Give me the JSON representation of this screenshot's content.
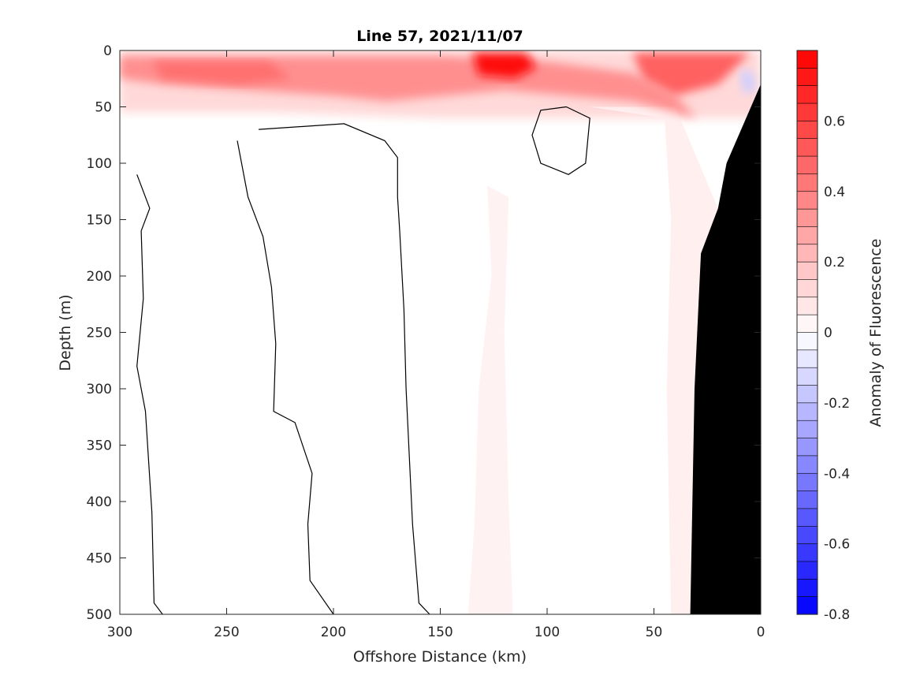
{
  "chart_data": {
    "type": "heatmap",
    "title": "Line 57, 2021/11/07",
    "xlabel": "Offshore Distance (km)",
    "ylabel": "Depth (m)",
    "colorbar_label": "Anomaly of Fluorescence",
    "xlim": [
      300,
      0
    ],
    "ylim": [
      500,
      0
    ],
    "x_reversed": true,
    "y_reversed": true,
    "x_ticks": [
      300,
      250,
      200,
      150,
      100,
      50,
      0
    ],
    "x_tick_labels": [
      "300",
      "250",
      "200",
      "150",
      "100",
      "50",
      "0"
    ],
    "y_ticks": [
      0,
      50,
      100,
      150,
      200,
      250,
      300,
      350,
      400,
      450,
      500
    ],
    "y_tick_labels": [
      "0",
      "50",
      "100",
      "150",
      "200",
      "250",
      "300",
      "350",
      "400",
      "450",
      "500"
    ],
    "colorbar": {
      "range": [
        -0.8,
        0.8
      ],
      "levels": 32,
      "ticks": [
        0.6,
        0.4,
        0.2,
        0,
        -0.2,
        -0.4,
        -0.6,
        -0.8
      ],
      "tick_labels": [
        "0.6",
        "0.4",
        "0.2",
        "0",
        "-0.2",
        "-0.4",
        "-0.6",
        "-0.8"
      ],
      "colormap": "blue-white-red"
    },
    "colors": {
      "negative": "#0000ff",
      "neutral": "#ffffff",
      "positive": "#ff0000",
      "bottom_mask": "#000000",
      "contour": "#000000"
    },
    "features": [
      {
        "region": "surface layer 0-60 m",
        "anomaly": 0.5
      },
      {
        "region": "near 125 km, 0-30 m",
        "anomaly": 0.75
      },
      {
        "region": "slope band 0-50 km, 0-500 m",
        "anomaly": 0.1
      },
      {
        "region": "band near 130 km, 130-500 m",
        "anomaly": 0.05
      },
      {
        "region": "nearshore patch 0-10 km, 20-40 m",
        "anomaly": -0.15
      }
    ],
    "zero_contours": [
      [
        [
          292,
          110
        ],
        [
          286,
          140
        ],
        [
          290,
          160
        ],
        [
          289,
          220
        ],
        [
          292,
          280
        ],
        [
          288,
          320
        ],
        [
          285,
          410
        ],
        [
          284,
          490
        ],
        [
          280,
          500
        ]
      ],
      [
        [
          245,
          80
        ],
        [
          240,
          130
        ],
        [
          233,
          165
        ],
        [
          229,
          210
        ],
        [
          227,
          260
        ],
        [
          228,
          320
        ],
        [
          218,
          330
        ],
        [
          210,
          375
        ],
        [
          212,
          420
        ],
        [
          211,
          470
        ],
        [
          200,
          500
        ]
      ],
      [
        [
          235,
          70
        ],
        [
          195,
          65
        ],
        [
          176,
          80
        ],
        [
          170,
          95
        ],
        [
          170,
          130
        ],
        [
          169,
          160
        ],
        [
          167,
          230
        ],
        [
          166,
          300
        ],
        [
          163,
          420
        ],
        [
          160,
          490
        ],
        [
          155,
          500
        ]
      ],
      [
        [
          91,
          50
        ],
        [
          80,
          60
        ],
        [
          82,
          100
        ],
        [
          90,
          110
        ],
        [
          103,
          100
        ],
        [
          107,
          75
        ],
        [
          103,
          53
        ],
        [
          91,
          50
        ]
      ]
    ],
    "seafloor": [
      [
        0,
        30
      ],
      [
        16,
        100
      ],
      [
        20,
        140
      ],
      [
        28,
        180
      ],
      [
        31,
        300
      ],
      [
        32,
        400
      ],
      [
        33,
        500
      ]
    ]
  }
}
